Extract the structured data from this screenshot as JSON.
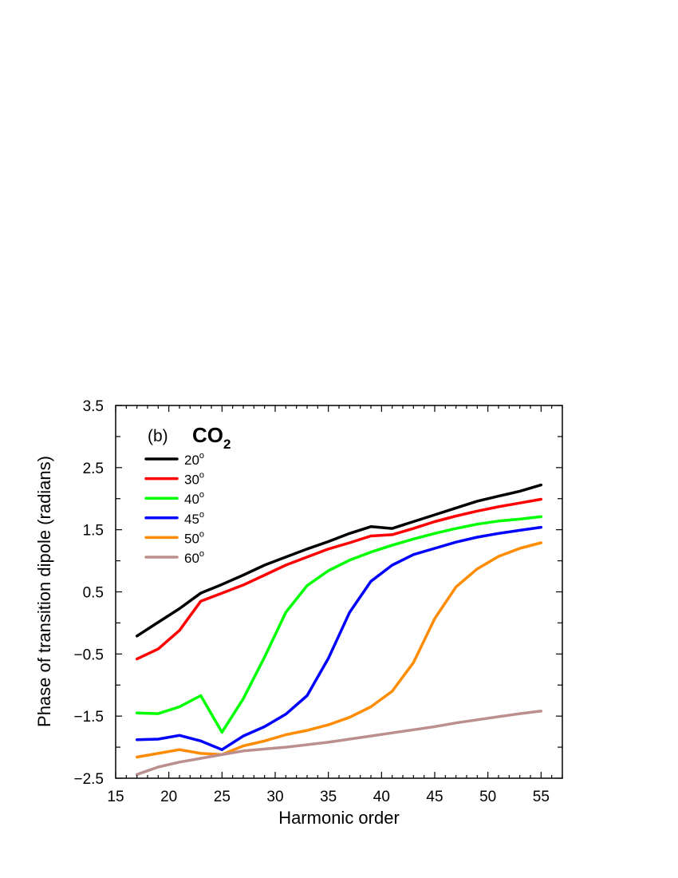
{
  "chart_data": {
    "type": "line",
    "title": "(b) CO2",
    "panel_label": "(b)",
    "molecule": {
      "main": "CO",
      "subscript": "2"
    },
    "xlabel": "Harmonic order",
    "ylabel": "Phase of transition dipole (radians)",
    "xlim": [
      15,
      57
    ],
    "ylim": [
      -2.5,
      3.5
    ],
    "xticks": [
      15,
      20,
      25,
      30,
      35,
      40,
      45,
      50,
      55
    ],
    "xtick_labels": [
      "15",
      "20",
      "25",
      "30",
      "35",
      "40",
      "45",
      "50",
      "55"
    ],
    "yticks": [
      -2.5,
      -1.5,
      -0.5,
      0.5,
      1.5,
      2.5,
      3.5
    ],
    "ytick_labels": [
      "−2.5",
      "−1.5",
      "−0.5",
      "0.5",
      "1.5",
      "2.5",
      "3.5"
    ],
    "grid": false,
    "legend_position": "upper left",
    "x": [
      17,
      19,
      21,
      23,
      25,
      27,
      29,
      31,
      33,
      35,
      37,
      39,
      41,
      43,
      45,
      47,
      49,
      51,
      53,
      55
    ],
    "series": [
      {
        "name": "20°",
        "angle": "20",
        "color": "#000000",
        "values": [
          -0.21,
          0.01,
          0.23,
          0.48,
          0.62,
          0.77,
          0.93,
          1.06,
          1.19,
          1.31,
          1.44,
          1.55,
          1.52,
          1.63,
          1.74,
          1.85,
          1.96,
          2.04,
          2.12,
          2.22
        ]
      },
      {
        "name": "30°",
        "angle": "30",
        "color": "#ff0000",
        "values": [
          -0.58,
          -0.42,
          -0.12,
          0.35,
          0.48,
          0.61,
          0.77,
          0.93,
          1.06,
          1.19,
          1.29,
          1.4,
          1.42,
          1.52,
          1.63,
          1.72,
          1.8,
          1.87,
          1.93,
          1.99
        ]
      },
      {
        "name": "40°",
        "angle": "40",
        "color": "#00ff00",
        "values": [
          -1.45,
          -1.46,
          -1.35,
          -1.17,
          -1.76,
          -1.22,
          -0.55,
          0.17,
          0.6,
          0.84,
          1.01,
          1.14,
          1.25,
          1.35,
          1.44,
          1.52,
          1.59,
          1.64,
          1.67,
          1.71
        ]
      },
      {
        "name": "45°",
        "angle": "45",
        "color": "#0000ff",
        "values": [
          -1.88,
          -1.87,
          -1.81,
          -1.9,
          -2.04,
          -1.82,
          -1.67,
          -1.47,
          -1.17,
          -0.57,
          0.17,
          0.67,
          0.93,
          1.1,
          1.2,
          1.3,
          1.38,
          1.44,
          1.49,
          1.54
        ]
      },
      {
        "name": "50°",
        "angle": "50",
        "color": "#ff8c00",
        "values": [
          -2.16,
          -2.1,
          -2.04,
          -2.1,
          -2.12,
          -1.98,
          -1.9,
          -1.8,
          -1.73,
          -1.64,
          -1.52,
          -1.35,
          -1.1,
          -0.64,
          0.07,
          0.58,
          0.87,
          1.07,
          1.2,
          1.29
        ]
      },
      {
        "name": "60°",
        "angle": "60",
        "color": "#bc8f8f",
        "values": [
          -2.44,
          -2.32,
          -2.24,
          -2.18,
          -2.12,
          -2.06,
          -2.03,
          -2.0,
          -1.96,
          -1.92,
          -1.87,
          -1.82,
          -1.77,
          -1.72,
          -1.67,
          -1.61,
          -1.56,
          -1.51,
          -1.46,
          -1.42
        ]
      }
    ]
  }
}
